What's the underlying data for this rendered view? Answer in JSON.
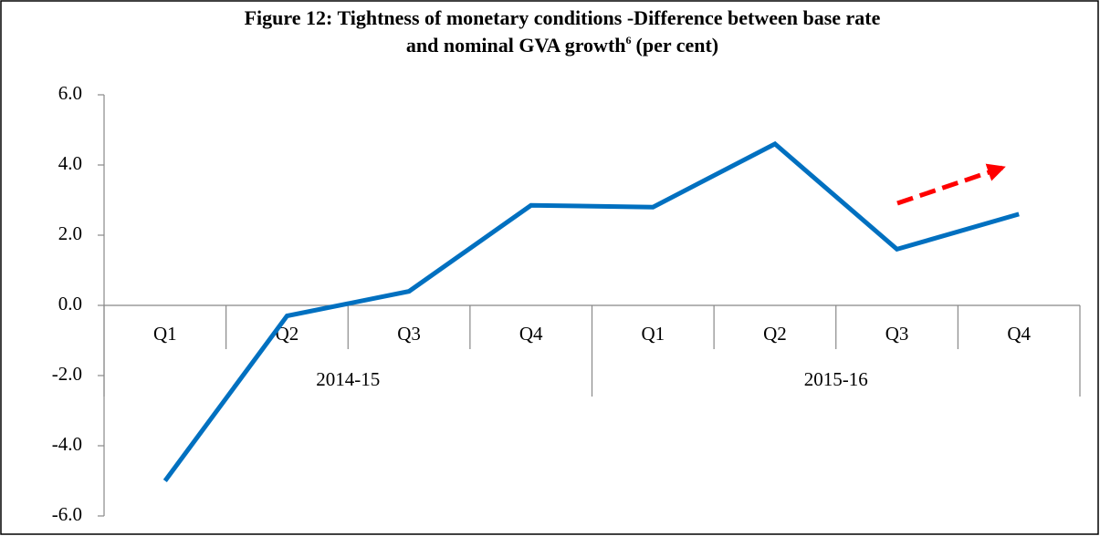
{
  "chart_data": {
    "type": "line",
    "title": [
      "Figure 12: Tightness of monetary conditions -Difference between base rate",
      "and nominal GVA growth"
    ],
    "title_note": "6",
    "title_unit": "(per cent)",
    "categories": [
      "Q1",
      "Q2",
      "Q3",
      "Q4",
      "Q1",
      "Q2",
      "Q3",
      "Q4"
    ],
    "category_groups": [
      "2014-15",
      "2015-16"
    ],
    "series": [
      {
        "name": "Difference between base rate and nominal GVA growth",
        "color": "#0070c0",
        "values": [
          -5.0,
          -0.3,
          0.4,
          2.85,
          2.8,
          4.6,
          1.6,
          2.6
        ]
      }
    ],
    "ylim": [
      -6,
      6
    ],
    "yticks": [
      {
        "value": -6,
        "label": "-6.0"
      },
      {
        "value": -4,
        "label": "-4.0"
      },
      {
        "value": -2,
        "label": "-2.0"
      },
      {
        "value": 0,
        "label": "0.0"
      },
      {
        "value": 2,
        "label": "2.0"
      },
      {
        "value": 4,
        "label": "4.0"
      },
      {
        "value": 6,
        "label": "6.0"
      }
    ],
    "grid": false
  }
}
